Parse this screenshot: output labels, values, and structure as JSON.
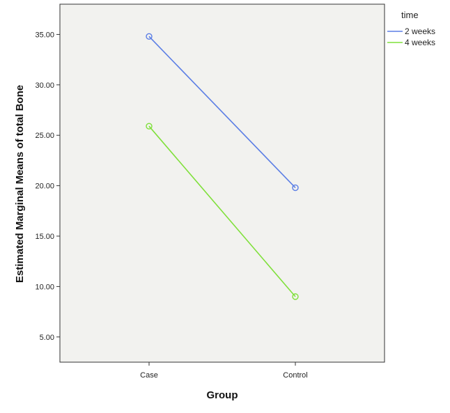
{
  "chart_data": {
    "type": "line",
    "xlabel": "Group",
    "ylabel": "Estimated Marginal Means of total Bone",
    "categories": [
      "Case",
      "Control"
    ],
    "ylim": [
      2.5,
      38.0
    ],
    "yticks": [
      "5.00",
      "10.00",
      "15.00",
      "20.00",
      "25.00",
      "30.00",
      "35.00"
    ],
    "grid": false,
    "legend": {
      "title": "time",
      "position": "right"
    },
    "series": [
      {
        "name": "2 weeks",
        "values": [
          34.8,
          19.8
        ],
        "color": "#5b7ee5"
      },
      {
        "name": "4 weeks",
        "values": [
          25.9,
          9.0
        ],
        "color": "#7fe03a"
      }
    ]
  }
}
